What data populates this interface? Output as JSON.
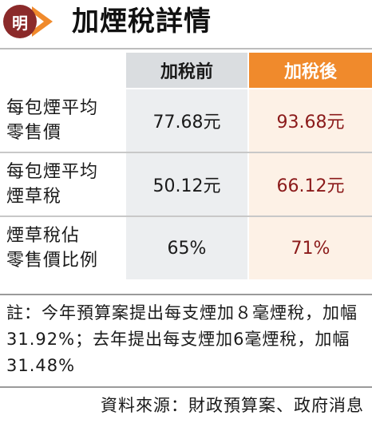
{
  "header": {
    "logo_char": "明",
    "title": "加煙稅詳情"
  },
  "chart_data": {
    "type": "table",
    "title": "加煙稅詳情",
    "columns": [
      "加稅前",
      "加稅後"
    ],
    "rows": [
      {
        "label_lines": [
          "每包煙平均",
          "零售價"
        ],
        "before": "77.68元",
        "after": "93.68元"
      },
      {
        "label_lines": [
          "每包煙平均",
          "煙草稅"
        ],
        "before": "50.12元",
        "after": "66.12元"
      },
      {
        "label_lines": [
          "煙草稅佔",
          "零售價比例"
        ],
        "before": "65%",
        "after": "71%"
      }
    ]
  },
  "note": "註：今年預算案提出每支煙加８毫煙稅，加幅31.92%；去年提出每支煙加6毫煙稅，加幅31.48%",
  "source": "資料來源：財政預算案、政府消息",
  "colors": {
    "accent_orange": "#f08a2c",
    "logo_red": "#8b2a2a",
    "after_text": "#8b1a1a"
  }
}
